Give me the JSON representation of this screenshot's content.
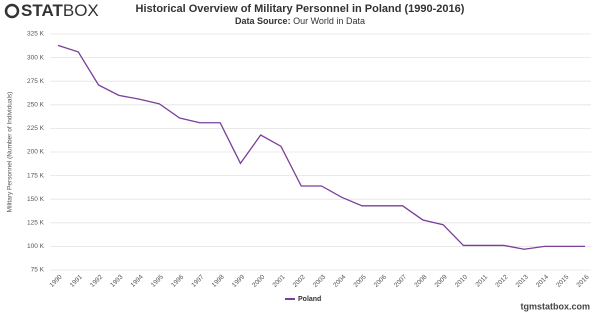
{
  "logo": {
    "bold": "STAT",
    "light": "BOX"
  },
  "footer": "tgmstatbox.com",
  "chart_data": {
    "type": "line",
    "title": "Historical Overview of Military Personnel in Poland (1990-2016)",
    "subtitle_label": "Data Source:",
    "subtitle": "Our World in Data",
    "y_label": "Military Personnel (Number of Individuals)",
    "x": [
      1990,
      1991,
      1992,
      1993,
      1994,
      1995,
      1996,
      1997,
      1998,
      1999,
      2000,
      2001,
      2002,
      2003,
      2004,
      2005,
      2006,
      2007,
      2008,
      2009,
      2010,
      2011,
      2012,
      2013,
      2014,
      2015,
      2016
    ],
    "xlim": [
      1990,
      2016
    ],
    "series": [
      {
        "name": "Poland",
        "color": "#7b3f98",
        "values": [
          313000,
          306000,
          271000,
          260000,
          256000,
          251000,
          236000,
          231000,
          231000,
          188000,
          218000,
          206000,
          164000,
          164000,
          152000,
          143000,
          143000,
          143000,
          128000,
          123000,
          101000,
          101000,
          101000,
          97000,
          100000,
          100000,
          100000
        ]
      }
    ],
    "ylim": [
      75000,
      325000
    ],
    "yticks": [
      {
        "value": 75000,
        "label": "75 K"
      },
      {
        "value": 100000,
        "label": "100 K"
      },
      {
        "value": 125000,
        "label": "125 K"
      },
      {
        "value": 150000,
        "label": "150 K"
      },
      {
        "value": 175000,
        "label": "175 K"
      },
      {
        "value": 200000,
        "label": "200 K"
      },
      {
        "value": 225000,
        "label": "225 K"
      },
      {
        "value": 250000,
        "label": "250 K"
      },
      {
        "value": 275000,
        "label": "275 K"
      },
      {
        "value": 300000,
        "label": "300 K"
      },
      {
        "value": 325000,
        "label": "325 K"
      }
    ],
    "grid": true
  }
}
